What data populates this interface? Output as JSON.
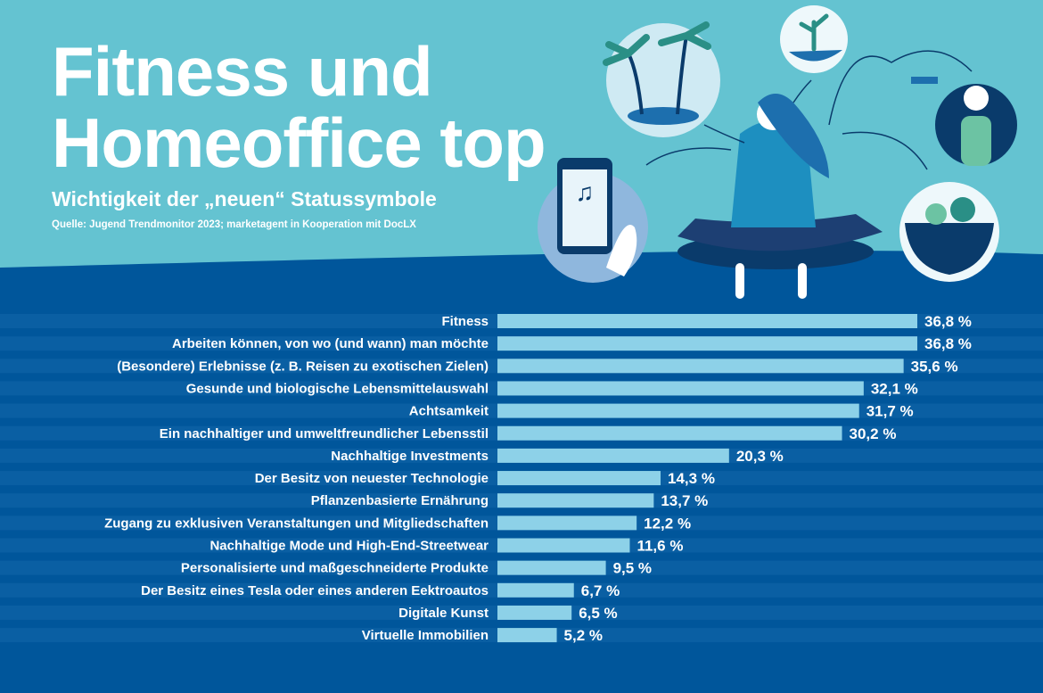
{
  "header": {
    "title_line1": "Fitness und",
    "title_line2": "Homeoffice top",
    "subtitle": "Wichtigkeit der „neuen“ Statussymbole",
    "source": "Quelle: Jugend Trendmonitor 2023; marketagent in Kooperation mit DocLX"
  },
  "colors": {
    "background_top": "#64c3d1",
    "background_bottom": "#00569b",
    "bar": "#8dd1e8",
    "stripe": "#0a5fa3"
  },
  "chart_data": {
    "type": "bar",
    "orientation": "horizontal",
    "title": "Wichtigkeit der „neuen“ Statussymbole",
    "unit": "%",
    "categories": [
      "Fitness",
      "Arbeiten können, von wo (und wann) man möchte",
      "(Besondere) Erlebnisse (z. B. Reisen zu exotischen Zielen)",
      "Gesunde und biologische Lebensmittelauswahl",
      "Achtsamkeit",
      "Ein nachhaltiger und umweltfreundlicher Lebensstil",
      "Nachhaltige Investments",
      "Der Besitz von neuester Technologie",
      "Pflanzenbasierte Ernährung",
      "Zugang zu exklusiven Veranstaltungen und Mitgliedschaften",
      "Nachhaltige Mode und High-End-Streetwear",
      "Personalisierte und maßgeschneiderte Produkte",
      "Der Besitz eines Tesla oder eines anderen Eektroautos",
      "Digitale Kunst",
      "Virtuelle Immobilien"
    ],
    "values": [
      36.8,
      36.8,
      35.6,
      32.1,
      31.7,
      30.2,
      20.3,
      14.3,
      13.7,
      12.2,
      11.6,
      9.5,
      6.7,
      6.5,
      5.2
    ],
    "data_labels": [
      "36,8 %",
      "36,8 %",
      "35,6 %",
      "32,1 %",
      "31,7 %",
      "30,2 %",
      "20,3 %",
      "14,3 %",
      "13,7 %",
      "12,2 %",
      "11,6 %",
      "9,5 %",
      "6,7 %",
      "6,5 %",
      "5,2 %"
    ],
    "xlim": [
      0,
      40
    ],
    "grid": false,
    "legend": "none"
  }
}
